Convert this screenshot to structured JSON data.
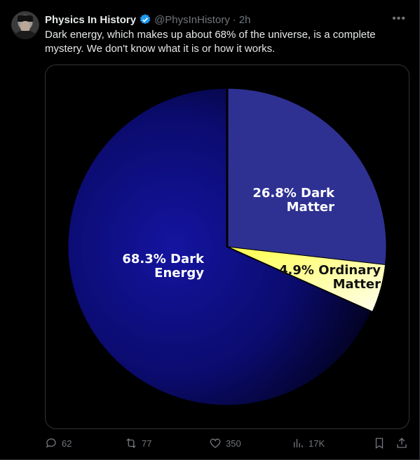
{
  "tweet": {
    "author_name": "Physics In History",
    "handle": "@PhysInHistory",
    "separator": "·",
    "time": "2h",
    "text": "Dark energy, which makes up about 68% of the universe, is a complete mystery. We don't know what it is or how it works."
  },
  "actions": {
    "replies": "62",
    "reposts": "77",
    "likes": "350",
    "views": "17K"
  },
  "icons": [
    "verified-icon",
    "more-icon",
    "reply-icon",
    "repost-icon",
    "like-icon",
    "views-icon",
    "bookmark-icon",
    "share-icon"
  ],
  "colors": {
    "accent": "#1d9bf0",
    "muted": "#71767b",
    "dark_matter": "#2e3192",
    "ordinary_matter": "#ffff66",
    "dark_energy": "#0b0b6e"
  },
  "chart_data": {
    "type": "pie",
    "slices": [
      {
        "label": "26.8% Dark Matter",
        "value": 26.8,
        "color": "#2e3192"
      },
      {
        "label": "4.9% Ordinary Matter",
        "value": 4.9,
        "color": "#ffff66"
      },
      {
        "label": "68.3% Dark Energy",
        "value": 68.3,
        "color": "#0b0b6e"
      }
    ]
  }
}
